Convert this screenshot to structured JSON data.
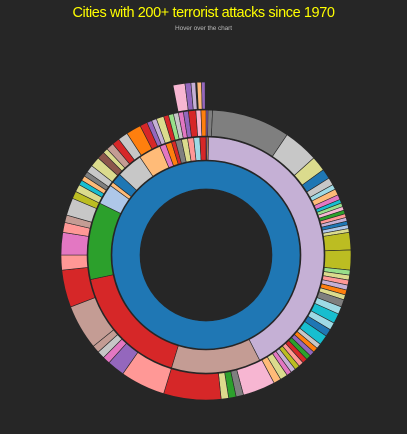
{
  "chart_data": {
    "type": "sunburst",
    "title": "Cities with 200+ terrorist attacks since 1970",
    "subtitle": "Hover over the chart",
    "palette": [
      "#1f77b4",
      "#aec7e8",
      "#ff7f0e",
      "#ffbb78",
      "#2ca02c",
      "#98df8a",
      "#d62728",
      "#ff9896",
      "#9467bd",
      "#c5b0d5",
      "#8c564b",
      "#c49c94",
      "#e377c2",
      "#f7b6d2",
      "#7f7f7f",
      "#c7c7c7",
      "#bcbd22",
      "#dbdb8d",
      "#17becf",
      "#9edae5"
    ],
    "rings": [
      {
        "level": 1,
        "segments": [
          {
            "start": 0,
            "end": 360,
            "color": "#1f77b4"
          }
        ]
      },
      {
        "level": 2,
        "segments": [
          {
            "start": 0,
            "end": 0.6,
            "color": "#9467bd"
          },
          {
            "start": 0.6,
            "end": 1.3,
            "color": "#ffbb78"
          },
          {
            "start": 1.3,
            "end": 153,
            "color": "#c5b0d5"
          },
          {
            "start": 153,
            "end": 197,
            "color": "#c49c94"
          },
          {
            "start": 197,
            "end": 258,
            "color": "#d62728"
          },
          {
            "start": 258,
            "end": 296,
            "color": "#2ca02c"
          },
          {
            "start": 296,
            "end": 306,
            "color": "#aec7e8"
          },
          {
            "start": 306,
            "end": 308,
            "color": "#ffbb78"
          },
          {
            "start": 308,
            "end": 313,
            "color": "#1f77b4"
          },
          {
            "start": 313,
            "end": 326,
            "color": "#c7c7c7"
          },
          {
            "start": 326,
            "end": 337,
            "color": "#ffbb78"
          },
          {
            "start": 337,
            "end": 340,
            "color": "#e377c2"
          },
          {
            "start": 340,
            "end": 343,
            "color": "#ff7f0e"
          },
          {
            "start": 343,
            "end": 345,
            "color": "#d62728"
          },
          {
            "start": 345,
            "end": 348,
            "color": "#7f7f7f"
          },
          {
            "start": 348,
            "end": 351,
            "color": "#dbdb8d"
          },
          {
            "start": 351,
            "end": 354,
            "color": "#ff9896"
          },
          {
            "start": 354,
            "end": 357,
            "color": "#9edae5"
          },
          {
            "start": 357,
            "end": 360,
            "color": "#d62728"
          }
        ]
      },
      {
        "level": 3,
        "segments": [
          {
            "start": 0,
            "end": 0.8,
            "color": "#9467bd"
          },
          {
            "start": 0.8,
            "end": 2.6,
            "color": "#7f7f7f"
          },
          {
            "start": 2.6,
            "end": 34,
            "color": "#7f7f7f"
          },
          {
            "start": 34,
            "end": 48,
            "color": "#c7c7c7"
          },
          {
            "start": 48,
            "end": 54,
            "color": "#dbdb8d"
          },
          {
            "start": 54,
            "end": 58,
            "color": "#1f77b4"
          },
          {
            "start": 58,
            "end": 61,
            "color": "#c7c7c7"
          },
          {
            "start": 61,
            "end": 63,
            "color": "#9edae5"
          },
          {
            "start": 63,
            "end": 65.5,
            "color": "#ffbb78"
          },
          {
            "start": 65.5,
            "end": 67.5,
            "color": "#e377c2"
          },
          {
            "start": 67.5,
            "end": 69,
            "color": "#17becf"
          },
          {
            "start": 69,
            "end": 70.5,
            "color": "#98df8a"
          },
          {
            "start": 70.5,
            "end": 72,
            "color": "#f7b6d2"
          },
          {
            "start": 72,
            "end": 73.5,
            "color": "#2ca02c"
          },
          {
            "start": 73.5,
            "end": 75,
            "color": "#ff9896"
          },
          {
            "start": 75,
            "end": 76.5,
            "color": "#c5b0d5"
          },
          {
            "start": 76.5,
            "end": 78,
            "color": "#1f77b4"
          },
          {
            "start": 78,
            "end": 79.5,
            "color": "#aec7e8"
          },
          {
            "start": 79.5,
            "end": 81,
            "color": "#dbdb8d"
          },
          {
            "start": 81,
            "end": 88,
            "color": "#bcbd22"
          },
          {
            "start": 88,
            "end": 96,
            "color": "#bcbd22"
          },
          {
            "start": 96,
            "end": 98,
            "color": "#98df8a"
          },
          {
            "start": 98,
            "end": 100,
            "color": "#dbdb8d"
          },
          {
            "start": 100,
            "end": 102,
            "color": "#ff9896"
          },
          {
            "start": 102,
            "end": 104,
            "color": "#c5b0d5"
          },
          {
            "start": 104,
            "end": 106,
            "color": "#ff7f0e"
          },
          {
            "start": 106,
            "end": 108,
            "color": "#dbdb8d"
          },
          {
            "start": 108,
            "end": 111,
            "color": "#7f7f7f"
          },
          {
            "start": 111,
            "end": 114,
            "color": "#9edae5"
          },
          {
            "start": 114,
            "end": 118,
            "color": "#17becf"
          },
          {
            "start": 118,
            "end": 121,
            "color": "#9edae5"
          },
          {
            "start": 121,
            "end": 124,
            "color": "#1f77b4"
          },
          {
            "start": 124,
            "end": 128,
            "color": "#17becf"
          },
          {
            "start": 128,
            "end": 130,
            "color": "#c7c7c7"
          },
          {
            "start": 130,
            "end": 132,
            "color": "#ff7f0e"
          },
          {
            "start": 132,
            "end": 134,
            "color": "#9467bd"
          },
          {
            "start": 134,
            "end": 136,
            "color": "#2ca02c"
          },
          {
            "start": 136,
            "end": 138,
            "color": "#d62728"
          },
          {
            "start": 138,
            "end": 140,
            "color": "#ff9896"
          },
          {
            "start": 140,
            "end": 142,
            "color": "#bcbd22"
          },
          {
            "start": 142,
            "end": 144,
            "color": "#c5b0d5"
          },
          {
            "start": 144,
            "end": 146,
            "color": "#e377c2"
          },
          {
            "start": 146,
            "end": 149,
            "color": "#dbdb8d"
          },
          {
            "start": 149,
            "end": 152,
            "color": "#ffbb78"
          },
          {
            "start": 152,
            "end": 165,
            "color": "#f7b6d2"
          },
          {
            "start": 165,
            "end": 168,
            "color": "#7f7f7f"
          },
          {
            "start": 168,
            "end": 171,
            "color": "#2ca02c"
          },
          {
            "start": 171,
            "end": 174,
            "color": "#dbdb8d"
          },
          {
            "start": 174,
            "end": 197,
            "color": "#d62728"
          },
          {
            "start": 197,
            "end": 215,
            "color": "#ff9896"
          },
          {
            "start": 215,
            "end": 222,
            "color": "#9467bd"
          },
          {
            "start": 222,
            "end": 225,
            "color": "#e377c2"
          },
          {
            "start": 225,
            "end": 228,
            "color": "#c7c7c7"
          },
          {
            "start": 228,
            "end": 231,
            "color": "#c49c94"
          },
          {
            "start": 231,
            "end": 249,
            "color": "#c49c94"
          },
          {
            "start": 249,
            "end": 264,
            "color": "#d62728"
          },
          {
            "start": 264,
            "end": 270,
            "color": "#ff9896"
          },
          {
            "start": 270,
            "end": 279,
            "color": "#e377c2"
          },
          {
            "start": 279,
            "end": 283,
            "color": "#ff9896"
          },
          {
            "start": 283,
            "end": 286,
            "color": "#c49c94"
          },
          {
            "start": 286,
            "end": 293,
            "color": "#c7c7c7"
          },
          {
            "start": 293,
            "end": 296,
            "color": "#bcbd22"
          },
          {
            "start": 296,
            "end": 299,
            "color": "#dbdb8d"
          },
          {
            "start": 299,
            "end": 301,
            "color": "#17becf"
          },
          {
            "start": 301,
            "end": 303,
            "color": "#ffbb78"
          },
          {
            "start": 303,
            "end": 305,
            "color": "#7f7f7f"
          },
          {
            "start": 305,
            "end": 308,
            "color": "#c7c7c7"
          },
          {
            "start": 308,
            "end": 312,
            "color": "#dbdb8d"
          },
          {
            "start": 312,
            "end": 315,
            "color": "#8c564b"
          },
          {
            "start": 315,
            "end": 317,
            "color": "#dbdb8d"
          },
          {
            "start": 317,
            "end": 320,
            "color": "#c49c94"
          },
          {
            "start": 320,
            "end": 323,
            "color": "#d62728"
          },
          {
            "start": 323,
            "end": 327,
            "color": "#c7c7c7"
          },
          {
            "start": 327,
            "end": 333,
            "color": "#ff7f0e"
          },
          {
            "start": 333,
            "end": 336,
            "color": "#d62728"
          },
          {
            "start": 336,
            "end": 338,
            "color": "#9467bd"
          },
          {
            "start": 338,
            "end": 340,
            "color": "#c5b0d5"
          },
          {
            "start": 340,
            "end": 343,
            "color": "#dbdb8d"
          },
          {
            "start": 343,
            "end": 345,
            "color": "#d62728"
          },
          {
            "start": 345,
            "end": 347,
            "color": "#98df8a"
          },
          {
            "start": 347,
            "end": 349,
            "color": "#c7c7c7"
          },
          {
            "start": 349,
            "end": 351,
            "color": "#e377c2"
          },
          {
            "start": 351,
            "end": 353,
            "color": "#9467bd"
          },
          {
            "start": 353,
            "end": 356,
            "color": "#d62728"
          },
          {
            "start": 356,
            "end": 358,
            "color": "#f7b6d2"
          },
          {
            "start": 358,
            "end": 360,
            "color": "#ff7f0e"
          }
        ]
      },
      {
        "level": 4,
        "segments": [
          {
            "start": 349,
            "end": 353,
            "color": "#f7b6d2"
          },
          {
            "start": 353,
            "end": 355,
            "color": "#9467bd"
          },
          {
            "start": 355,
            "end": 356.5,
            "color": "#c5b0d5"
          },
          {
            "start": 357,
            "end": 358.5,
            "color": "#ffbb78"
          },
          {
            "start": 358.5,
            "end": 359.7,
            "color": "#9467bd"
          }
        ]
      }
    ]
  }
}
